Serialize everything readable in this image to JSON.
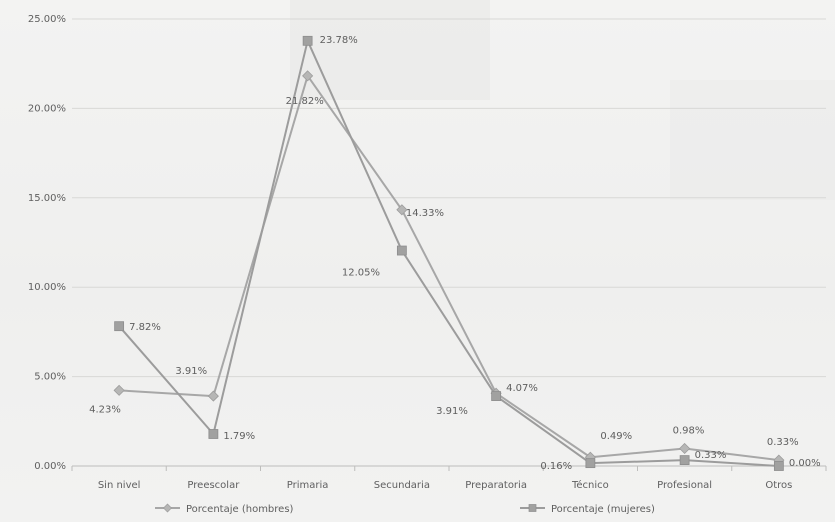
{
  "chart_data": {
    "type": "line",
    "title": "",
    "xlabel": "",
    "ylabel": "",
    "categories": [
      "Sin nivel",
      "Preescolar",
      "Primaria",
      "Secundaria",
      "Preparatoria",
      "Técnico",
      "Profesional",
      "Otros"
    ],
    "ylim": [
      0,
      25
    ],
    "y_ticks": [
      {
        "value": 0,
        "label": "0.00%"
      },
      {
        "value": 5,
        "label": "5.00%"
      },
      {
        "value": 10,
        "label": "10.00%"
      },
      {
        "value": 15,
        "label": "15.00%"
      },
      {
        "value": 20,
        "label": "20.00%"
      },
      {
        "value": 25,
        "label": "25.00%"
      }
    ],
    "grid": true,
    "legend": "bottom",
    "series": [
      {
        "name": "Porcentaje (hombres)",
        "marker": "diamond",
        "color": "#a7a7a7",
        "values": [
          4.23,
          3.91,
          21.82,
          14.33,
          4.07,
          0.49,
          0.98,
          0.33
        ],
        "labels": [
          "4.23%",
          "3.91%",
          "21.82%",
          "14.33%",
          "4.07%",
          "0.49%",
          "0.98%",
          "0.33%"
        ]
      },
      {
        "name": "Porcentaje (mujeres)",
        "marker": "square",
        "color": "#9c9c9c",
        "values": [
          7.82,
          1.79,
          23.78,
          12.05,
          3.91,
          0.16,
          0.33,
          0.0
        ],
        "labels": [
          "7.82%",
          "1.79%",
          "23.78%",
          "12.05%",
          "3.91%",
          "0.16%",
          "0.33%",
          "0.00%"
        ]
      }
    ]
  }
}
